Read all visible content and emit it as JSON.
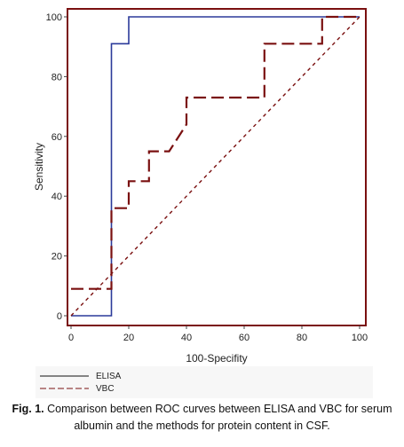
{
  "chart_data": {
    "type": "line",
    "xlabel": "100-Specifity",
    "ylabel": "Sensitivity",
    "xlim": [
      0,
      100
    ],
    "ylim": [
      0,
      100
    ],
    "x_ticks": [
      0,
      20,
      40,
      60,
      80,
      100
    ],
    "y_ticks": [
      0,
      20,
      40,
      60,
      80,
      100
    ],
    "series": [
      {
        "name": "ELISA",
        "color": "#2b3a9a",
        "style": "solid",
        "points": [
          [
            0,
            0
          ],
          [
            14,
            0
          ],
          [
            14,
            91
          ],
          [
            20,
            91
          ],
          [
            20,
            100
          ],
          [
            100,
            100
          ]
        ]
      },
      {
        "name": "VBC",
        "color": "#7a1010",
        "style": "dashed",
        "points": [
          [
            0,
            9
          ],
          [
            14,
            9
          ],
          [
            14,
            36
          ],
          [
            20,
            36
          ],
          [
            20,
            45
          ],
          [
            27,
            45
          ],
          [
            27,
            55
          ],
          [
            34,
            55
          ],
          [
            40,
            64
          ],
          [
            40,
            73
          ],
          [
            67,
            73
          ],
          [
            67,
            91
          ],
          [
            87,
            91
          ],
          [
            87,
            100
          ],
          [
            100,
            100
          ]
        ]
      },
      {
        "name": "",
        "color": "#7a1010",
        "style": "dotted",
        "points": [
          [
            0,
            0
          ],
          [
            100,
            100
          ]
        ]
      }
    ],
    "legend": [
      {
        "label": "ELISA",
        "style": "solid",
        "color": "#111111"
      },
      {
        "label": "VBC",
        "style": "dashed",
        "color": "#7a1010"
      }
    ],
    "legend_position": "bottom-left",
    "grid": false
  },
  "caption": {
    "label": "Fig. 1.",
    "text": " Comparison between ROC curves between ELISA and VBC for serum albumin and the methods for protein content in CSF."
  },
  "colors": {
    "frame": "#7a1010"
  }
}
